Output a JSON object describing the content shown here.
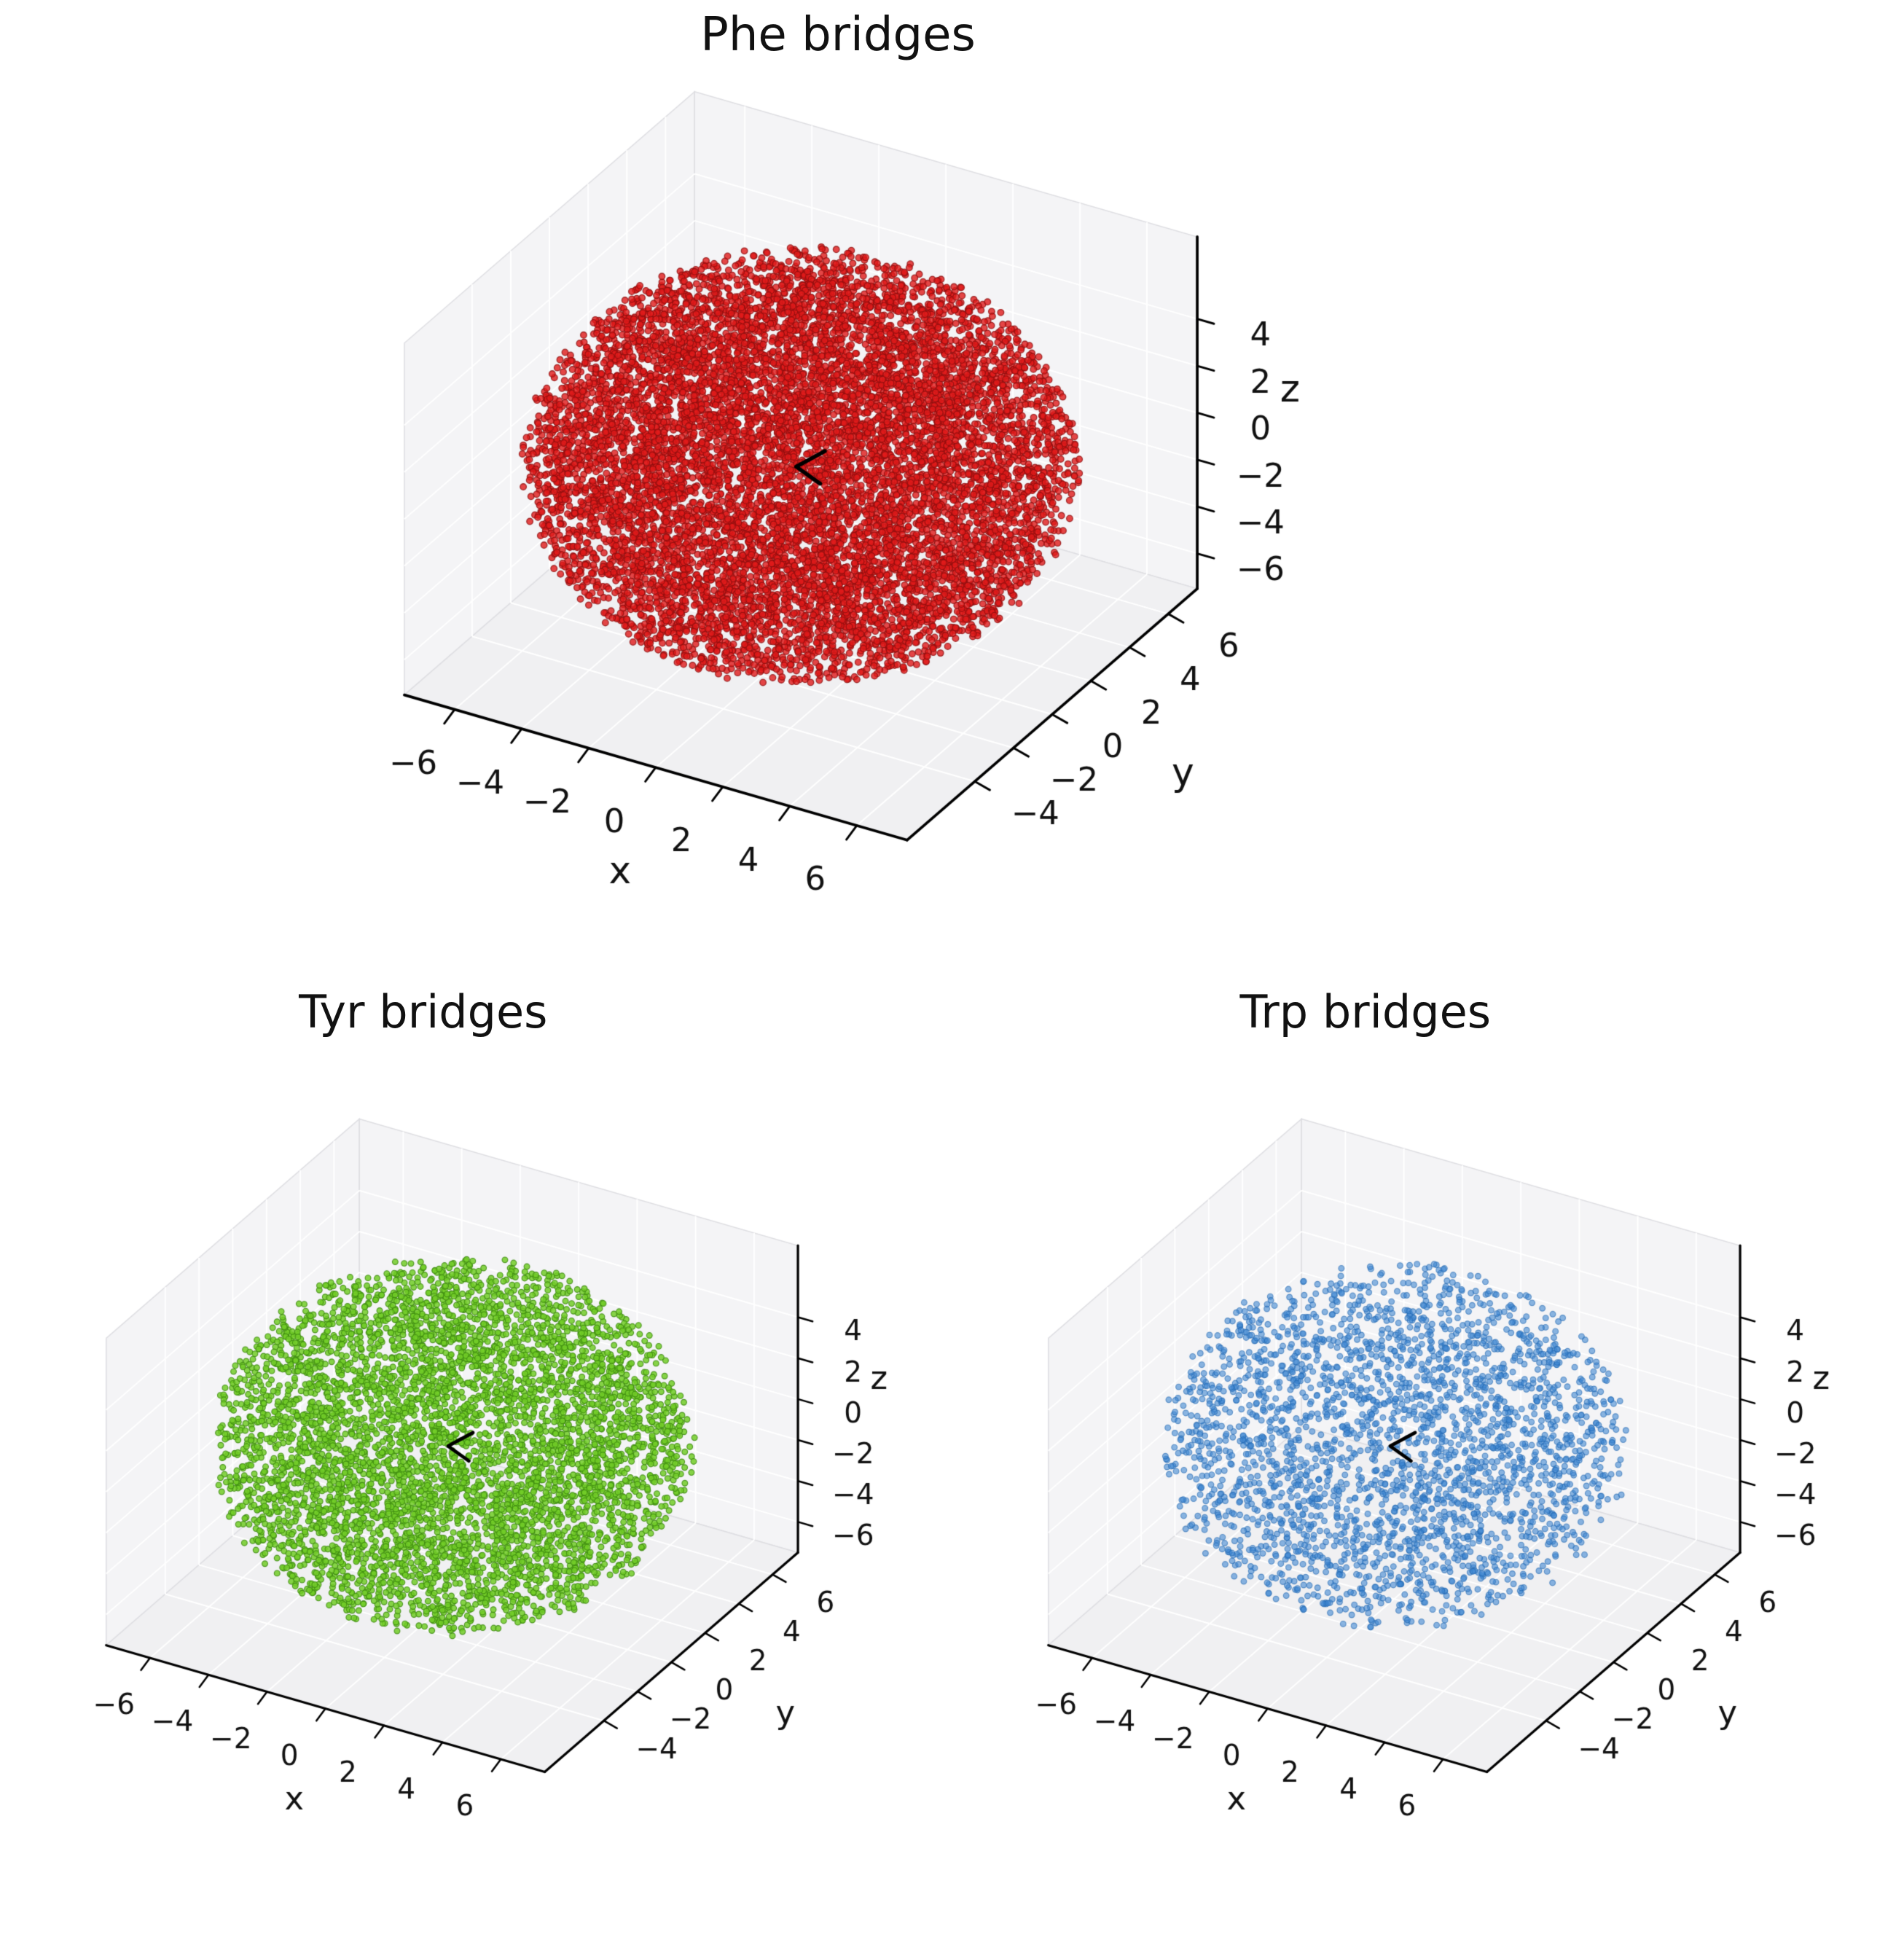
{
  "figure": {
    "background": "#ffffff",
    "layout": "one 3D scatter subplot on top centered, two 3D scatter subplots below side by side"
  },
  "theme": {
    "pane_wall": "#f4f4f6",
    "pane_floor": "#f0f0f2",
    "pane_edge": "#dedee2",
    "grid": "#ffffff",
    "axis": "#000000",
    "text": "#111111"
  },
  "chart_data": [
    {
      "type": "scatter",
      "projection": "3d",
      "title": "Phe bridges",
      "xlabel": "x",
      "ylabel": "y",
      "zlabel": "z",
      "xlim": [
        -7.5,
        7.5
      ],
      "ylim": [
        -7.5,
        7.5
      ],
      "zlim": [
        -7.5,
        7.5
      ],
      "xticks": [
        -6,
        -4,
        -2,
        0,
        2,
        4,
        6
      ],
      "xtick_labels": [
        "−6",
        "−4",
        "−2",
        "0",
        "2",
        "4",
        "6"
      ],
      "yticks": [
        -4,
        -2,
        0,
        2,
        4,
        6
      ],
      "ytick_labels": [
        "−4",
        "−2",
        "0",
        "2",
        "4",
        "6"
      ],
      "zticks": [
        -6,
        -4,
        -2,
        0,
        2,
        4
      ],
      "ztick_labels": [
        "−6",
        "−4",
        "−2",
        "0",
        "2",
        "4"
      ],
      "view": {
        "elev": 30,
        "azim": -60,
        "z_aspect": 0.7
      },
      "marker": {
        "color": "#e01a1a",
        "edge_color": "#8f0f0f",
        "alpha": 0.8,
        "size": 4.3
      },
      "distribution": {
        "shape": "spherical-cloud",
        "center": [
          0,
          0,
          0
        ],
        "radius": 7.25,
        "radial_exponent": 0.27,
        "n_points": 10000,
        "seed": 101
      },
      "origin_marker": {
        "color": "#000000",
        "shape": "angle-bracket"
      },
      "grid": true,
      "description": "Dense red spherical cloud of points centered at the origin, radius about 7"
    },
    {
      "type": "scatter",
      "projection": "3d",
      "title": "Tyr bridges",
      "xlabel": "x",
      "ylabel": "y",
      "zlabel": "z",
      "xlim": [
        -7.5,
        7.5
      ],
      "ylim": [
        -7.5,
        7.5
      ],
      "zlim": [
        -7.5,
        7.5
      ],
      "xticks": [
        -6,
        -4,
        -2,
        0,
        2,
        4,
        6
      ],
      "xtick_labels": [
        "−6",
        "−4",
        "−2",
        "0",
        "2",
        "4",
        "6"
      ],
      "yticks": [
        -4,
        -2,
        0,
        2,
        4,
        6
      ],
      "ytick_labels": [
        "−4",
        "−2",
        "0",
        "2",
        "4",
        "6"
      ],
      "zticks": [
        -6,
        -4,
        -2,
        0,
        2,
        4
      ],
      "ztick_labels": [
        "−6",
        "−4",
        "−2",
        "0",
        "2",
        "4"
      ],
      "view": {
        "elev": 30,
        "azim": -60,
        "z_aspect": 0.7
      },
      "marker": {
        "color": "#72cc28",
        "edge_color": "#3d8a10",
        "alpha": 0.85,
        "size": 3.9
      },
      "distribution": {
        "shape": "spherical-cloud",
        "center": [
          0,
          0,
          0
        ],
        "radius": 7.2,
        "radial_exponent": 0.27,
        "n_points": 5500,
        "seed": 202
      },
      "origin_marker": {
        "color": "#000000",
        "shape": "angle-bracket"
      },
      "grid": true,
      "description": "Medium-density yellow-green spherical cloud of points centered at the origin, radius about 7"
    },
    {
      "type": "scatter",
      "projection": "3d",
      "title": "Trp bridges",
      "xlabel": "x",
      "ylabel": "y",
      "zlabel": "z",
      "xlim": [
        -7.5,
        7.5
      ],
      "ylim": [
        -7.5,
        7.5
      ],
      "zlim": [
        -7.5,
        7.5
      ],
      "xticks": [
        -6,
        -4,
        -2,
        0,
        2,
        4,
        6
      ],
      "xtick_labels": [
        "−6",
        "−4",
        "−2",
        "0",
        "2",
        "4",
        "6"
      ],
      "yticks": [
        -4,
        -2,
        0,
        2,
        4,
        6
      ],
      "ytick_labels": [
        "−4",
        "−2",
        "0",
        "2",
        "4",
        "6"
      ],
      "zticks": [
        -6,
        -4,
        -2,
        0,
        2,
        4
      ],
      "ztick_labels": [
        "−6",
        "−4",
        "−2",
        "0",
        "2",
        "4"
      ],
      "view": {
        "elev": 30,
        "azim": -60,
        "z_aspect": 0.7
      },
      "marker": {
        "color": "#3f87d2",
        "edge_color": "#2268b0",
        "alpha": 0.6,
        "size": 3.9
      },
      "distribution": {
        "shape": "spherical-cloud",
        "center": [
          0,
          0,
          0
        ],
        "radius": 7.0,
        "radial_exponent": 0.27,
        "n_points": 2700,
        "seed": 303
      },
      "origin_marker": {
        "color": "#000000",
        "shape": "angle-bracket"
      },
      "grid": true,
      "description": "Sparser blue spherical cloud of points centered at the origin, radius about 7"
    }
  ]
}
